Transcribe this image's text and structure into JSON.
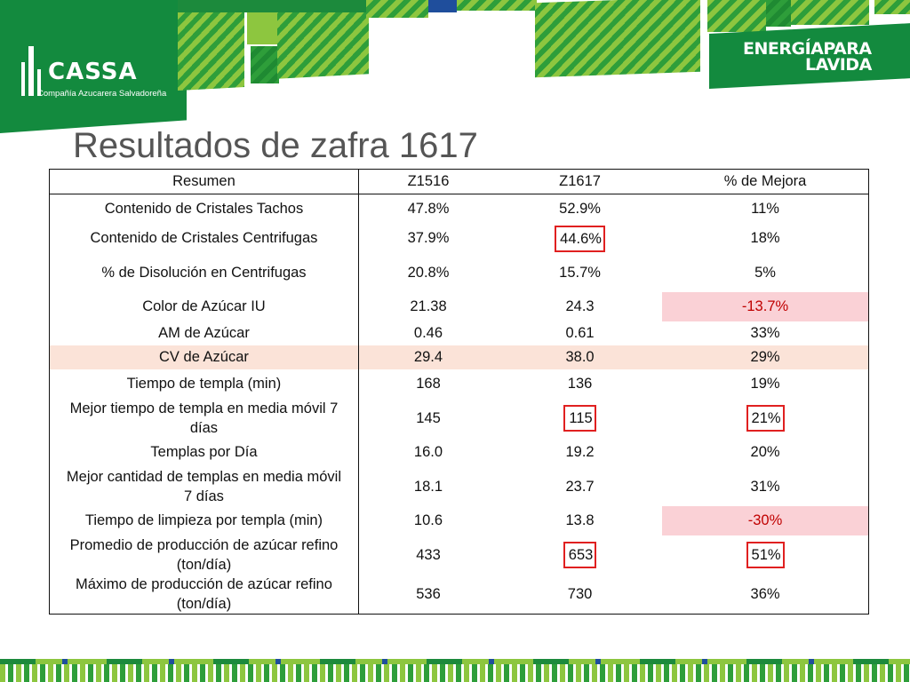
{
  "header": {
    "logo": {
      "brand": "CASSA",
      "subtitle": "Compañía Azucarera Salvadoreña"
    },
    "slogan": {
      "line1": "ENERGÍAPARA",
      "line2": "LAVIDA"
    }
  },
  "title": "Resultados de zafra 1617",
  "table": {
    "headers": [
      "Resumen",
      "Z1516",
      "Z1617",
      "% de Mejora"
    ],
    "rows": [
      {
        "label": "Contenido de Cristales Tachos",
        "z1516": "47.8%",
        "z1617": "52.9%",
        "mejora": "11%"
      },
      {
        "label": "Contenido de Cristales Centrifugas",
        "z1516": "37.9%",
        "z1617": "44.6%",
        "mejora": "18%"
      },
      {
        "label": "% de Disolución en Centrifugas",
        "z1516": "20.8%",
        "z1617": "15.7%",
        "mejora": "5%"
      },
      {
        "label": "Color de Azúcar IU",
        "z1516": "21.38",
        "z1617": "24.3",
        "mejora": "-13.7%"
      },
      {
        "label": "AM de Azúcar",
        "z1516": "0.46",
        "z1617": "0.61",
        "mejora": "33%"
      },
      {
        "label": "CV de Azúcar",
        "z1516": "29.4",
        "z1617": "38.0",
        "mejora": "29%"
      },
      {
        "label": "Tiempo de templa (min)",
        "z1516": "168",
        "z1617": "136",
        "mejora": "19%"
      },
      {
        "label_line1": "Mejor tiempo de templa en media móvil 7",
        "label_line2": "días",
        "z1516": "145",
        "z1617": "115",
        "mejora": "21%"
      },
      {
        "label": "Templas por Día",
        "z1516": "16.0",
        "z1617": "19.2",
        "mejora": "20%"
      },
      {
        "label_line1": "Mejor cantidad de templas en media móvil",
        "label_line2": "7 días",
        "z1516": "18.1",
        "z1617": "23.7",
        "mejora": "31%"
      },
      {
        "label": "Tiempo de limpieza por templa (min)",
        "z1516": "10.6",
        "z1617": "13.8",
        "mejora": "-30%"
      },
      {
        "label_line1": "Promedio de producción de azúcar refino",
        "label_line2": "(ton/día)",
        "z1516": "433",
        "z1617": "653",
        "mejora": "51%"
      },
      {
        "label_line1": "Máximo de producción de azúcar refino",
        "label_line2": "(ton/día)",
        "z1516": "536",
        "z1617": "730",
        "mejora": "36%"
      }
    ]
  },
  "colors": {
    "brand_green": "#138a3e",
    "lime": "#8dc63f",
    "negative_bg": "#fad1d6",
    "negative_text": "#c00000",
    "highlight_row_bg": "#fbe3d8",
    "box_outline": "#e02020"
  }
}
